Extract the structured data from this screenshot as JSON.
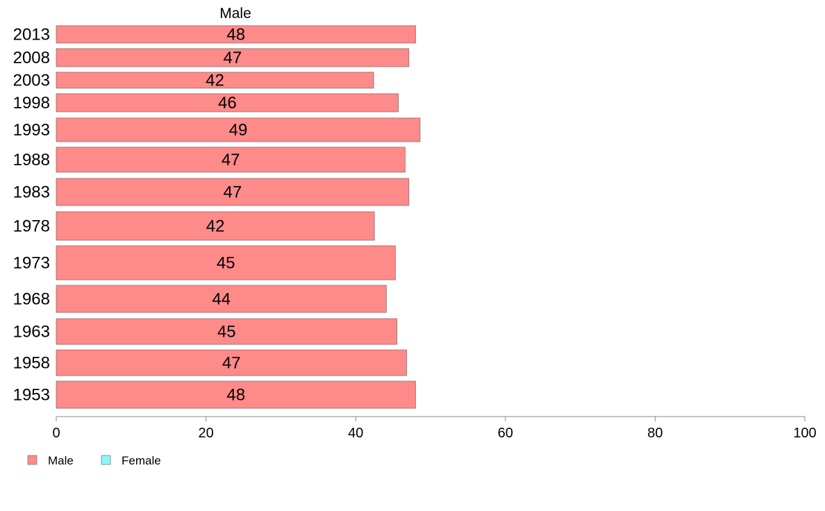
{
  "chart_data": {
    "type": "bar",
    "orientation": "horizontal",
    "series_title": "Male",
    "categories": [
      "2013",
      "2008",
      "2003",
      "1998",
      "1993",
      "1988",
      "1983",
      "1978",
      "1973",
      "1968",
      "1963",
      "1958",
      "1953"
    ],
    "series": [
      {
        "name": "Male",
        "color": "#ff8a8a",
        "values": [
          48,
          47,
          42,
          46,
          49,
          47,
          47,
          42,
          45,
          44,
          45,
          47,
          48
        ],
        "bar_values": [
          48.0,
          47.1,
          42.4,
          45.7,
          48.6,
          46.6,
          47.1,
          42.5,
          45.3,
          44.1,
          45.5,
          46.8,
          48.0
        ]
      }
    ],
    "xlim": [
      0,
      100
    ],
    "xticks": [
      "0",
      "20",
      "40",
      "60",
      "80",
      "100"
    ],
    "legend": {
      "placement": "bottom-left",
      "items": [
        {
          "label": "Male",
          "color": "#ff8a8a"
        },
        {
          "label": "Female",
          "color": "#8af8f8"
        }
      ]
    },
    "grid": false
  }
}
